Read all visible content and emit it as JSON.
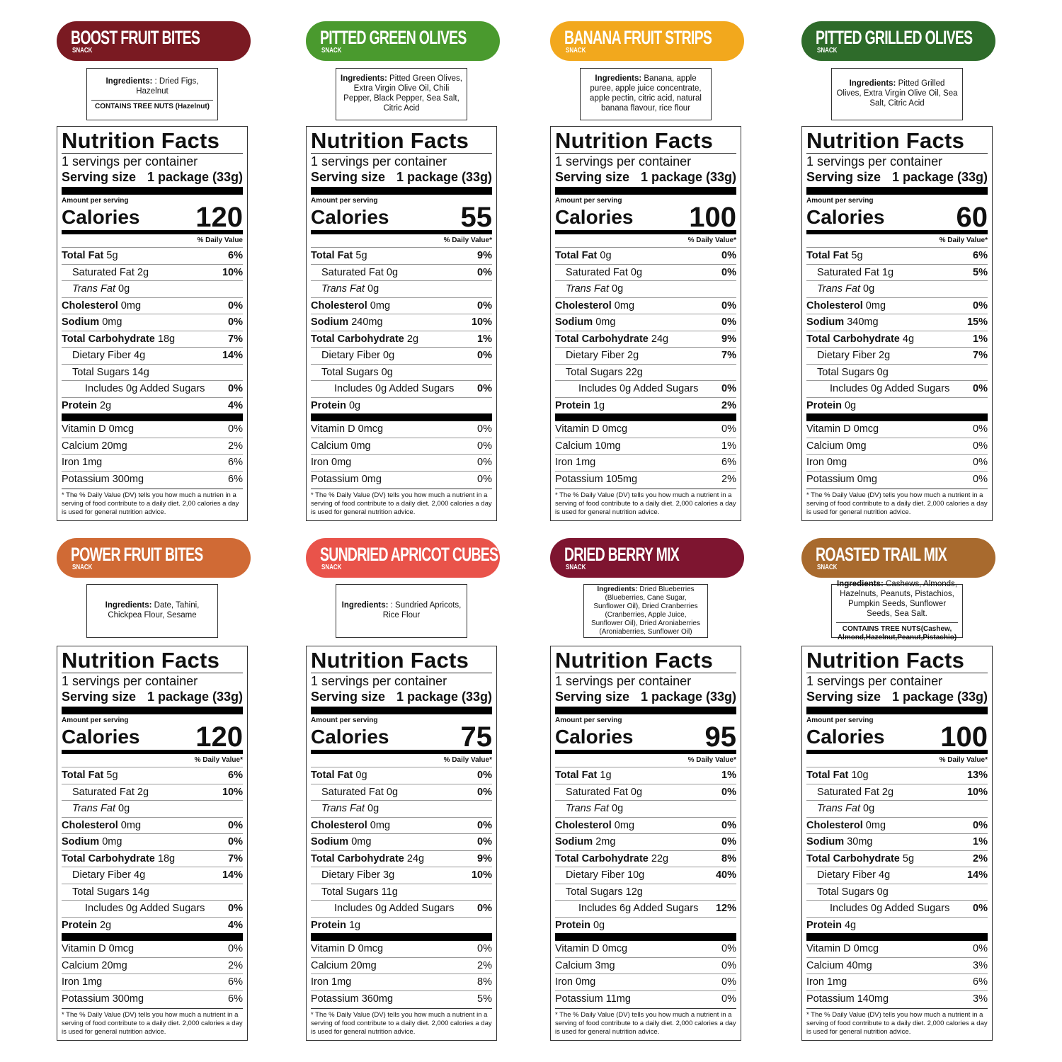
{
  "label_text": {
    "title": "Nutrition Facts",
    "servings": "1 servings per container",
    "serving_size": "Serving size",
    "serving_size_value": "1 package (33g)",
    "amount_per_serving": "Amount per serving",
    "calories": "Calories",
    "includes": "Includes",
    "ingredients": "Ingredients:",
    "tag": "SNACK"
  },
  "nutrients": [
    "Total Fat",
    "Saturated Fat",
    "Trans Fat",
    "Cholesterol",
    "Sodium",
    "Total Carbohydrate",
    "Dietary Fiber",
    "Total Sugars",
    "Added Sugars",
    "Protein",
    "Vitamin D",
    "Calcium",
    "Iron",
    "Potassium"
  ],
  "products": [
    {
      "name": "BOOST FRUIT BITES",
      "color": "#7a1a22",
      "ingredients": ": Dried Figs, Hazelnut",
      "contains": "CONTAINS TREE NUTS (Hazelnut)",
      "calories": "120",
      "dv_heading": "% Daily Value",
      "amounts": [
        "5g",
        "2g",
        "0g",
        "0mg",
        "0mg",
        "18g",
        "4g",
        "14g",
        "0g",
        "2g",
        "0mcg",
        "20mg",
        "1mg",
        "300mg"
      ],
      "dv": [
        "6%",
        "10%",
        null,
        "0%",
        "0%",
        "7%",
        "14%",
        null,
        "0%",
        "4%",
        "0%",
        "2%",
        "6%",
        "6%"
      ],
      "footnote": "* The % Daily Value (DV) tells you how much a nutrien in a serving of food contribute to a daily diet. 2,00 calories a day is used for general nutrition advice."
    },
    {
      "name": "PITTED GREEN OLIVES",
      "color": "#4a9a2e",
      "ingredients": "Pitted Green Olives, Extra Virgin Olive Oil, Chili Pepper, Black Pepper, Sea Salt, Citric Acid",
      "contains": null,
      "calories": "55",
      "dv_heading": "% Daily Value*",
      "amounts": [
        "5g",
        "0g",
        "0g",
        "0mg",
        "240mg",
        "2g",
        "0g",
        "0g",
        "0g",
        "0g",
        "0mcg",
        "0mg",
        "0mg",
        "0mg"
      ],
      "dv": [
        "9%",
        "0%",
        null,
        "0%",
        "10%",
        "1%",
        "0%",
        null,
        "0%",
        null,
        "0%",
        "0%",
        "0%",
        "0%"
      ],
      "footnote": "* The % Daily Value (DV) tells you how much a nutrient in a serving of food contribute to a daily diet. 2,000 calories a day is used for general nutrition advice."
    },
    {
      "name": "BANANA FRUIT STRIPS",
      "color": "#f2a81d",
      "ingredients": "Banana, apple puree, apple juice concentrate, apple pectin, citric acid, natural banana flavour, rice flour",
      "contains": null,
      "calories": "100",
      "dv_heading": "% Daily Value*",
      "amounts": [
        "0g",
        "0g",
        "0g",
        "0mg",
        "0mg",
        "24g",
        "2g",
        "22g",
        "0g",
        "1g",
        "0mcg",
        "10mg",
        "1mg",
        "105mg"
      ],
      "dv": [
        "0%",
        "0%",
        null,
        "0%",
        "0%",
        "9%",
        "7%",
        null,
        "0%",
        "2%",
        "0%",
        "1%",
        "6%",
        "2%"
      ],
      "footnote": "* The % Daily Value (DV) tells you how much a nutrient in a serving of food contribute to a daily diet. 2,000 calories a day is used for general nutrition advice."
    },
    {
      "name": "PITTED GRILLED OLIVES",
      "color": "#2e6b2a",
      "ingredients": "Pitted Grilled Olives, Extra Virgin Olive Oil, Sea Salt, Citric Acid",
      "contains": null,
      "calories": "60",
      "dv_heading": "% Daily Value*",
      "amounts": [
        "5g",
        "1g",
        "0g",
        "0mg",
        "340mg",
        "4g",
        "2g",
        "0g",
        "0g",
        "0g",
        "0mcg",
        "0mg",
        "0mg",
        "0mg"
      ],
      "dv": [
        "6%",
        "5%",
        null,
        "0%",
        "15%",
        "1%",
        "7%",
        null,
        "0%",
        null,
        "0%",
        "0%",
        "0%",
        "0%"
      ],
      "footnote": "* The % Daily Value (DV) tells you how much a nutrient in a serving of food contribute to a daily diet. 2,000 calories a day is used for general nutrition advice."
    },
    {
      "name": "POWER FRUIT BITES",
      "color": "#d06a35",
      "ingredients": "Date, Tahini, Chickpea Flour, Sesame",
      "contains": null,
      "calories": "120",
      "dv_heading": "% Daily Value*",
      "amounts": [
        "5g",
        "2g",
        "0g",
        "0mg",
        "0mg",
        "18g",
        "4g",
        "14g",
        "0g",
        "2g",
        "0mcg",
        "20mg",
        "1mg",
        "300mg"
      ],
      "dv": [
        "6%",
        "10%",
        null,
        "0%",
        "0%",
        "7%",
        "14%",
        null,
        "0%",
        "4%",
        "0%",
        "2%",
        "6%",
        "6%"
      ],
      "footnote": "* The % Daily Value (DV) tells you how much a nutrient in a serving of food contribute to a daily diet. 2,000 calories a day is used for general nutrition advice."
    },
    {
      "name": "SUNDRIED APRICOT CUBES",
      "color": "#e9534a",
      "ingredients": ": Sundried Apricots, Rice Flour",
      "contains": null,
      "calories": "75",
      "dv_heading": "% Daily Value*",
      "amounts": [
        "0g",
        "0g",
        "0g",
        "0mg",
        "0mg",
        "24g",
        "3g",
        "11g",
        "0g",
        "1g",
        "0mcg",
        "20mg",
        "1mg",
        "360mg"
      ],
      "dv": [
        "0%",
        "0%",
        null,
        "0%",
        "0%",
        "9%",
        "10%",
        null,
        "0%",
        null,
        "0%",
        "2%",
        "8%",
        "5%"
      ],
      "footnote": "* The % Daily Value (DV) tells you how much a nutrient in a serving of food contribute to a daily diet. 2,000 calories a day is used for general nutrition advice."
    },
    {
      "name": "DRIED BERRY MIX",
      "color": "#7e1530",
      "ingredients": "Dried Blueberries (Blueberries, Cane Sugar, Sunflower Oil), Dried Cranberries (Cranberries, Apple Juice, Sunflower Oil), Dried Aroniaberries (Aroniaberries, Sunflower Oil)",
      "contains": null,
      "calories": "95",
      "dv_heading": "% Daily Value*",
      "amounts": [
        "1g",
        "0g",
        "0g",
        "0mg",
        "2mg",
        "22g",
        "10g",
        "12g",
        "6g",
        "0g",
        "0mcg",
        "3mg",
        "0mg",
        "11mg"
      ],
      "dv": [
        "1%",
        "0%",
        null,
        "0%",
        "0%",
        "8%",
        "40%",
        null,
        "12%",
        null,
        "0%",
        "0%",
        "0%",
        "0%"
      ],
      "footnote": "* The % Daily Value (DV) tells you how much a nutrient in a serving of food contribute to a daily diet. 2,000 calories a day is used for general nutrition advice."
    },
    {
      "name": "ROASTED TRAIL MIX",
      "color": "#a86a2e",
      "ingredients": "Cashews, Almonds, Hazelnuts, Peanuts, Pistachios, Pumpkin Seeds, Sunflower Seeds, Sea Salt.",
      "contains": "CONTAINS TREE NUTS(Cashew, Almond,Hazelnut,Peanut,Pistachio)",
      "calories": "100",
      "dv_heading": "% Daily Value*",
      "amounts": [
        "10g",
        "2g",
        "0g",
        "0mg",
        "30mg",
        "5g",
        "4g",
        "0g",
        "0g",
        "4g",
        "0mcg",
        "40mg",
        "1mg",
        "140mg"
      ],
      "dv": [
        "13%",
        "10%",
        null,
        "0%",
        "1%",
        "2%",
        "14%",
        null,
        "0%",
        null,
        "0%",
        "3%",
        "6%",
        "3%"
      ],
      "footnote": "* The % Daily Value (DV) tells you how much a nutrient in a serving of food contribute to a daily diet. 2,000 calories a day is used for general nutrition advice."
    }
  ]
}
